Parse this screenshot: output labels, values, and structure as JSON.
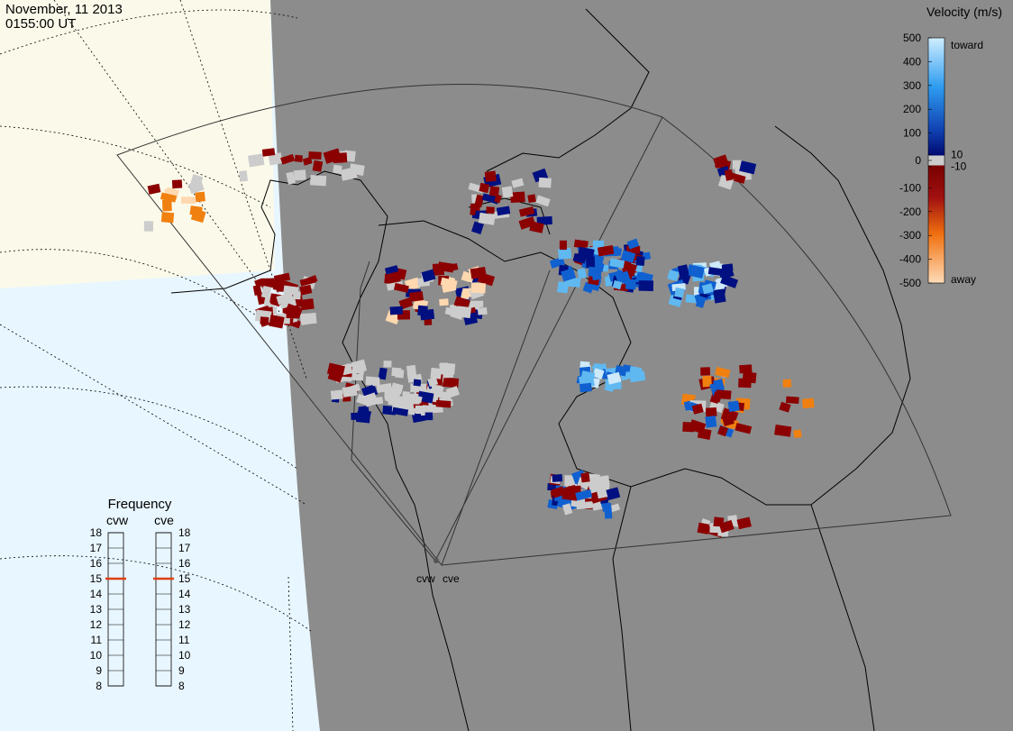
{
  "header": {
    "date": "November, 11 2013",
    "time": "0155:00 UT"
  },
  "colorbar": {
    "title": "Velocity (m/s)",
    "ticks": [
      500,
      400,
      300,
      200,
      100,
      10,
      0,
      -10,
      -100,
      -200,
      -300,
      -400,
      -500
    ],
    "top_label": "toward",
    "bottom_label": "away"
  },
  "frequency": {
    "title": "Frequency",
    "ticks": [
      18,
      17,
      16,
      15,
      14,
      13,
      12,
      11,
      10,
      9,
      8
    ],
    "radars": [
      {
        "name": "cvw",
        "value": 15
      },
      {
        "name": "cve",
        "value": 15
      }
    ]
  }
}
